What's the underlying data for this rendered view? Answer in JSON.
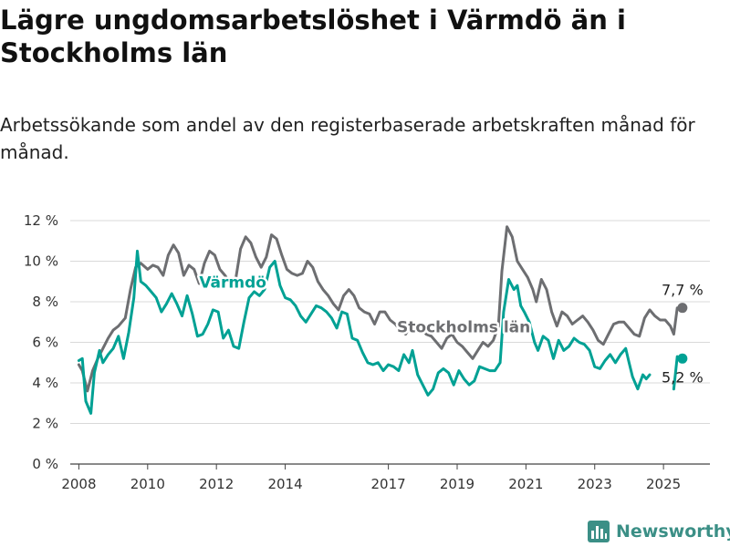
{
  "header": {
    "title": "Lägre ungdomsarbetslöshet i Värmdö än i Stockholms län",
    "subtitle": "Arbetssökande som andel av den registerbaserade arbetskraften månad för månad."
  },
  "brand": {
    "name": "Newsworthy",
    "icon": "bar-chart-logo-icon",
    "color": "#3b8f86"
  },
  "chart_data": {
    "type": "line",
    "title": "Lägre ungdomsarbetslöshet i Värmdö än i Stockholms län",
    "subtitle": "Arbetssökande som andel av den registerbaserade arbetskraften månad för månad.",
    "ylim": [
      0,
      12
    ],
    "yticks": [
      0,
      2,
      4,
      6,
      8,
      10,
      12
    ],
    "ytick_labels": [
      "0 %",
      "2 %",
      "4 %",
      "6 %",
      "8 %",
      "10 %",
      "12 %"
    ],
    "xlim": [
      2007.75,
      2026.35
    ],
    "xticks": [
      2008,
      2010,
      2012,
      2014,
      2017,
      2019,
      2021,
      2023,
      2025
    ],
    "xtick_labels": [
      "2008",
      "2010",
      "2012",
      "2014",
      "2017",
      "2019",
      "2021",
      "2023",
      "2025"
    ],
    "grid": true,
    "series": [
      {
        "name": "Stockholms län",
        "color": "#6d6e71",
        "label": "Stockholms län",
        "end_label": "7,7 %",
        "points": [
          [
            2008.0,
            4.9
          ],
          [
            2008.1,
            4.6
          ],
          [
            2008.25,
            3.6
          ],
          [
            2008.4,
            4.6
          ],
          [
            2008.55,
            5.2
          ],
          [
            2008.7,
            5.7
          ],
          [
            2008.85,
            6.2
          ],
          [
            2009.0,
            6.6
          ],
          [
            2009.15,
            6.8
          ],
          [
            2009.35,
            7.2
          ],
          [
            2009.5,
            8.6
          ],
          [
            2009.65,
            9.7
          ],
          [
            2009.8,
            9.9
          ],
          [
            2010.0,
            9.6
          ],
          [
            2010.15,
            9.8
          ],
          [
            2010.3,
            9.7
          ],
          [
            2010.45,
            9.3
          ],
          [
            2010.6,
            10.3
          ],
          [
            2010.75,
            10.8
          ],
          [
            2010.9,
            10.4
          ],
          [
            2011.05,
            9.3
          ],
          [
            2011.2,
            9.8
          ],
          [
            2011.35,
            9.6
          ],
          [
            2011.5,
            8.9
          ],
          [
            2011.65,
            9.9
          ],
          [
            2011.8,
            10.5
          ],
          [
            2011.95,
            10.3
          ],
          [
            2012.1,
            9.6
          ],
          [
            2012.25,
            9.3
          ],
          [
            2012.4,
            8.9
          ],
          [
            2012.55,
            9.0
          ],
          [
            2012.7,
            10.6
          ],
          [
            2012.85,
            11.2
          ],
          [
            2013.0,
            10.9
          ],
          [
            2013.15,
            10.2
          ],
          [
            2013.3,
            9.7
          ],
          [
            2013.45,
            10.2
          ],
          [
            2013.6,
            11.3
          ],
          [
            2013.75,
            11.1
          ],
          [
            2013.9,
            10.3
          ],
          [
            2014.05,
            9.6
          ],
          [
            2014.2,
            9.4
          ],
          [
            2014.35,
            9.3
          ],
          [
            2014.5,
            9.4
          ],
          [
            2014.65,
            10.0
          ],
          [
            2014.8,
            9.7
          ],
          [
            2014.95,
            9.0
          ],
          [
            2015.1,
            8.6
          ],
          [
            2015.25,
            8.3
          ],
          [
            2015.4,
            7.9
          ],
          [
            2015.55,
            7.6
          ],
          [
            2015.7,
            8.3
          ],
          [
            2015.85,
            8.6
          ],
          [
            2016.0,
            8.3
          ],
          [
            2016.15,
            7.7
          ],
          [
            2016.3,
            7.5
          ],
          [
            2016.45,
            7.4
          ],
          [
            2016.6,
            6.9
          ],
          [
            2016.75,
            7.5
          ],
          [
            2016.9,
            7.5
          ],
          [
            2017.05,
            7.1
          ],
          [
            2017.2,
            6.9
          ],
          [
            2017.35,
            6.6
          ],
          [
            2017.5,
            6.4
          ],
          [
            2017.65,
            6.8
          ],
          [
            2017.8,
            6.9
          ],
          [
            2017.95,
            6.7
          ],
          [
            2018.1,
            6.4
          ],
          [
            2018.25,
            6.3
          ],
          [
            2018.4,
            6.0
          ],
          [
            2018.55,
            5.7
          ],
          [
            2018.7,
            6.2
          ],
          [
            2018.85,
            6.4
          ],
          [
            2019.0,
            6.0
          ],
          [
            2019.15,
            5.8
          ],
          [
            2019.3,
            5.5
          ],
          [
            2019.45,
            5.2
          ],
          [
            2019.6,
            5.6
          ],
          [
            2019.75,
            6.0
          ],
          [
            2019.9,
            5.8
          ],
          [
            2020.05,
            6.1
          ],
          [
            2020.2,
            6.8
          ],
          [
            2020.3,
            9.5
          ],
          [
            2020.45,
            11.7
          ],
          [
            2020.6,
            11.2
          ],
          [
            2020.75,
            10.0
          ],
          [
            2020.9,
            9.6
          ],
          [
            2021.05,
            9.2
          ],
          [
            2021.2,
            8.6
          ],
          [
            2021.3,
            8.0
          ],
          [
            2021.45,
            9.1
          ],
          [
            2021.6,
            8.6
          ],
          [
            2021.75,
            7.5
          ],
          [
            2021.9,
            6.8
          ],
          [
            2022.05,
            7.5
          ],
          [
            2022.2,
            7.3
          ],
          [
            2022.35,
            6.9
          ],
          [
            2022.5,
            7.1
          ],
          [
            2022.65,
            7.3
          ],
          [
            2022.8,
            7.0
          ],
          [
            2022.95,
            6.6
          ],
          [
            2023.1,
            6.1
          ],
          [
            2023.25,
            5.9
          ],
          [
            2023.4,
            6.4
          ],
          [
            2023.55,
            6.9
          ],
          [
            2023.7,
            7.0
          ],
          [
            2023.85,
            7.0
          ],
          [
            2024.0,
            6.7
          ],
          [
            2024.15,
            6.4
          ],
          [
            2024.3,
            6.3
          ],
          [
            2024.45,
            7.2
          ],
          [
            2024.6,
            7.6
          ],
          [
            2024.75,
            7.3
          ],
          [
            2024.9,
            7.1
          ],
          [
            2025.05,
            7.1
          ],
          [
            2025.2,
            6.8
          ],
          [
            2025.3,
            6.4
          ],
          [
            2025.4,
            7.7
          ],
          [
            2025.55,
            7.7
          ]
        ]
      },
      {
        "name": "Värmdö",
        "color": "#00a194",
        "label": "Värmdö",
        "end_label": "5,2 %",
        "points": [
          [
            2008.0,
            5.1
          ],
          [
            2008.1,
            5.2
          ],
          [
            2008.2,
            3.1
          ],
          [
            2008.35,
            2.5
          ],
          [
            2008.45,
            4.5
          ],
          [
            2008.6,
            5.6
          ],
          [
            2008.7,
            5.0
          ],
          [
            2008.85,
            5.4
          ],
          [
            2009.0,
            5.7
          ],
          [
            2009.15,
            6.3
          ],
          [
            2009.3,
            5.2
          ],
          [
            2009.45,
            6.5
          ],
          [
            2009.6,
            8.2
          ],
          [
            2009.7,
            10.5
          ],
          [
            2009.8,
            9.0
          ],
          [
            2009.95,
            8.8
          ],
          [
            2010.1,
            8.5
          ],
          [
            2010.25,
            8.2
          ],
          [
            2010.4,
            7.5
          ],
          [
            2010.55,
            7.9
          ],
          [
            2010.7,
            8.4
          ],
          [
            2010.85,
            7.9
          ],
          [
            2011.0,
            7.3
          ],
          [
            2011.15,
            8.3
          ],
          [
            2011.3,
            7.4
          ],
          [
            2011.45,
            6.3
          ],
          [
            2011.6,
            6.4
          ],
          [
            2011.75,
            6.9
          ],
          [
            2011.9,
            7.6
          ],
          [
            2012.05,
            7.5
          ],
          [
            2012.2,
            6.2
          ],
          [
            2012.35,
            6.6
          ],
          [
            2012.5,
            5.8
          ],
          [
            2012.65,
            5.7
          ],
          [
            2012.8,
            7.0
          ],
          [
            2012.95,
            8.2
          ],
          [
            2013.1,
            8.5
          ],
          [
            2013.25,
            8.3
          ],
          [
            2013.4,
            8.6
          ],
          [
            2013.55,
            9.7
          ],
          [
            2013.7,
            10.0
          ],
          [
            2013.85,
            8.8
          ],
          [
            2014.0,
            8.2
          ],
          [
            2014.15,
            8.1
          ],
          [
            2014.3,
            7.8
          ],
          [
            2014.45,
            7.3
          ],
          [
            2014.6,
            7.0
          ],
          [
            2014.75,
            7.4
          ],
          [
            2014.9,
            7.8
          ],
          [
            2015.05,
            7.7
          ],
          [
            2015.2,
            7.5
          ],
          [
            2015.35,
            7.2
          ],
          [
            2015.5,
            6.7
          ],
          [
            2015.65,
            7.5
          ],
          [
            2015.8,
            7.4
          ],
          [
            2015.95,
            6.2
          ],
          [
            2016.1,
            6.1
          ],
          [
            2016.25,
            5.5
          ],
          [
            2016.4,
            5.0
          ],
          [
            2016.55,
            4.9
          ],
          [
            2016.7,
            5.0
          ],
          [
            2016.85,
            4.6
          ],
          [
            2017.0,
            4.9
          ],
          [
            2017.15,
            4.8
          ],
          [
            2017.3,
            4.6
          ],
          [
            2017.45,
            5.4
          ],
          [
            2017.6,
            5.0
          ],
          [
            2017.7,
            5.6
          ],
          [
            2017.85,
            4.4
          ],
          [
            2018.0,
            3.9
          ],
          [
            2018.15,
            3.4
          ],
          [
            2018.3,
            3.7
          ],
          [
            2018.45,
            4.5
          ],
          [
            2018.6,
            4.7
          ],
          [
            2018.75,
            4.5
          ],
          [
            2018.9,
            3.9
          ],
          [
            2019.05,
            4.6
          ],
          [
            2019.2,
            4.2
          ],
          [
            2019.35,
            3.9
          ],
          [
            2019.5,
            4.1
          ],
          [
            2019.65,
            4.8
          ],
          [
            2019.8,
            4.7
          ],
          [
            2019.95,
            4.6
          ],
          [
            2020.1,
            4.6
          ],
          [
            2020.25,
            5.0
          ],
          [
            2020.35,
            7.5
          ],
          [
            2020.5,
            9.1
          ],
          [
            2020.65,
            8.6
          ],
          [
            2020.75,
            8.8
          ],
          [
            2020.85,
            7.8
          ],
          [
            2020.95,
            7.5
          ],
          [
            2021.1,
            7.0
          ],
          [
            2021.25,
            6.0
          ],
          [
            2021.35,
            5.6
          ],
          [
            2021.5,
            6.3
          ],
          [
            2021.65,
            6.1
          ],
          [
            2021.8,
            5.2
          ],
          [
            2021.95,
            6.1
          ],
          [
            2022.1,
            5.6
          ],
          [
            2022.25,
            5.8
          ],
          [
            2022.4,
            6.2
          ],
          [
            2022.55,
            6.0
          ],
          [
            2022.7,
            5.9
          ],
          [
            2022.85,
            5.6
          ],
          [
            2023.0,
            4.8
          ],
          [
            2023.15,
            4.7
          ],
          [
            2023.3,
            5.1
          ],
          [
            2023.45,
            5.4
          ],
          [
            2023.6,
            5.0
          ],
          [
            2023.75,
            5.4
          ],
          [
            2023.9,
            5.7
          ],
          [
            2024.0,
            5.0
          ],
          [
            2024.1,
            4.3
          ],
          [
            2024.25,
            3.7
          ],
          [
            2024.4,
            4.4
          ],
          [
            2024.5,
            4.2
          ],
          [
            2024.6,
            4.4
          ],
          [
            null,
            null
          ],
          [
            2025.3,
            3.7
          ],
          [
            2025.4,
            5.3
          ],
          [
            2025.5,
            5.1
          ],
          [
            2025.55,
            5.2
          ]
        ]
      }
    ]
  }
}
